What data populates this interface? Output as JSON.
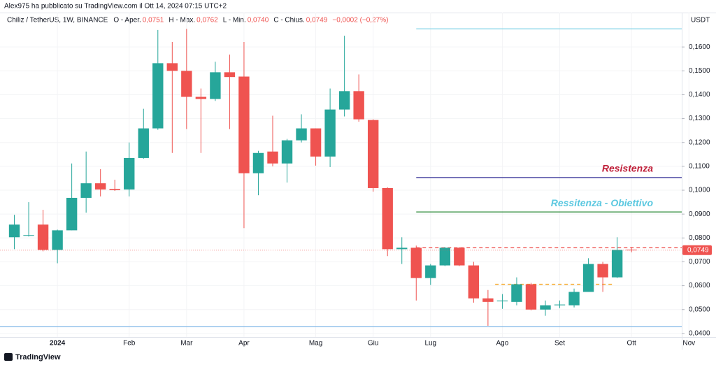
{
  "chart_data": {
    "type": "candlestick",
    "published": "Alex975 ha pubblicato su TradingView.com il Ott 14, 2024 07:15 UTC+2",
    "symbol": "Chiliz / TetherUS, 1W, BINANCE",
    "ohlc_legend": [
      {
        "label": "O - Aper.",
        "value": "0,0751"
      },
      {
        "label": "H - Max.",
        "value": "0,0762"
      },
      {
        "label": "L - Min.",
        "value": "0,0740"
      },
      {
        "label": "C - Chius.",
        "value": "0,0749"
      }
    ],
    "change": "−0,0002 (−0,27%)",
    "currency": "USDT",
    "brand": "TradingView",
    "up_color": "#26a69a",
    "down_color": "#ef5350",
    "open": [
      0.0803,
      0.081,
      0.0856,
      0.075,
      0.0832,
      0.0968,
      0.1029,
      0.1005,
      0.1003,
      0.1135,
      0.1259,
      0.1532,
      0.15,
      0.1391,
      0.1382,
      0.1494,
      0.1476,
      0.1071,
      0.1162,
      0.1112,
      0.1209,
      0.1259,
      0.1141,
      0.1338,
      0.1415,
      0.1294,
      0.1009,
      0.0753,
      0.0759,
      0.0632,
      0.0685,
      0.0759,
      0.0685,
      0.0547,
      0.0535,
      0.0532,
      0.0606,
      0.05,
      0.052,
      0.0518,
      0.0574,
      0.0691,
      0.0635,
      0.0751
    ],
    "high": [
      0.0897,
      0.095,
      0.0918,
      0.0835,
      0.1112,
      0.1162,
      0.1088,
      0.1044,
      0.12,
      0.1341,
      0.1671,
      0.1621,
      0.1676,
      0.1426,
      0.1538,
      0.1568,
      0.1621,
      0.1165,
      0.1312,
      0.1215,
      0.1318,
      0.1259,
      0.1426,
      0.1647,
      0.1485,
      0.1297,
      0.1012,
      0.0803,
      0.0768,
      0.0691,
      0.0762,
      0.0762,
      0.07,
      0.0582,
      0.0565,
      0.0635,
      0.0612,
      0.0538,
      0.0538,
      0.0588,
      0.0715,
      0.07,
      0.0803,
      0.0762
    ],
    "low": [
      0.0753,
      0.0806,
      0.0744,
      0.0694,
      0.0832,
      0.0906,
      0.0974,
      0.0997,
      0.0974,
      0.1132,
      0.1253,
      0.1156,
      0.1256,
      0.1156,
      0.1374,
      0.1256,
      0.0841,
      0.0979,
      0.11,
      0.1032,
      0.12,
      0.1103,
      0.1097,
      0.1309,
      0.1287,
      0.0994,
      0.0724,
      0.0691,
      0.0538,
      0.0603,
      0.0682,
      0.0682,
      0.0529,
      0.0432,
      0.0503,
      0.0518,
      0.0497,
      0.0474,
      0.0506,
      0.0509,
      0.0574,
      0.0574,
      0.0632,
      0.074
    ],
    "close": [
      0.0856,
      0.0812,
      0.075,
      0.0832,
      0.0968,
      0.1029,
      0.1003,
      0.1,
      0.1135,
      0.1259,
      0.1532,
      0.15,
      0.1391,
      0.1382,
      0.1494,
      0.1474,
      0.1071,
      0.1156,
      0.1112,
      0.1209,
      0.1259,
      0.1141,
      0.1338,
      0.1415,
      0.1297,
      0.1009,
      0.0753,
      0.0759,
      0.0632,
      0.0685,
      0.0759,
      0.0685,
      0.0547,
      0.0532,
      0.0538,
      0.0606,
      0.05,
      0.0518,
      0.0521,
      0.0574,
      0.0691,
      0.0635,
      0.075,
      0.0749
    ],
    "xlim": [
      -1,
      46.5
    ],
    "xticks": [
      {
        "value": 3,
        "label": "2024"
      },
      {
        "value": 8,
        "label": "Feb"
      },
      {
        "value": 12,
        "label": "Mar"
      },
      {
        "value": 16,
        "label": "Apr"
      },
      {
        "value": 21,
        "label": "Mag"
      },
      {
        "value": 25,
        "label": "Giu"
      },
      {
        "value": 29,
        "label": "Lug"
      },
      {
        "value": 34,
        "label": "Ago"
      },
      {
        "value": 38,
        "label": "Set"
      },
      {
        "value": 43,
        "label": "Ott"
      },
      {
        "value": 47,
        "label": "Nov"
      }
    ],
    "ylim": [
      0.0385,
      0.1744
    ],
    "yticks": [
      {
        "value": 0.04,
        "label": "0,0400"
      },
      {
        "value": 0.05,
        "label": "0,0500"
      },
      {
        "value": 0.06,
        "label": "0,0600"
      },
      {
        "value": 0.07,
        "label": "0,0700"
      },
      {
        "value": 0.08,
        "label": "0,0800"
      },
      {
        "value": 0.09,
        "label": "0,0900"
      },
      {
        "value": 0.1,
        "label": "0,1000"
      },
      {
        "value": 0.11,
        "label": "0,1100"
      },
      {
        "value": 0.12,
        "label": "0,1200"
      },
      {
        "value": 0.13,
        "label": "0,1300"
      },
      {
        "value": 0.14,
        "label": "0,1400"
      },
      {
        "value": 0.15,
        "label": "0,1500"
      },
      {
        "value": 0.16,
        "label": "0,1600"
      }
    ],
    "levels": [
      {
        "value": 0.1676,
        "color": "#7fd3e6",
        "from": 28,
        "to": 46.5,
        "dashed": false
      },
      {
        "value": 0.1053,
        "color": "#3f3a9c",
        "from": 28,
        "to": 46.5,
        "dashed": false
      },
      {
        "value": 0.0909,
        "color": "#2e8b3a",
        "from": 28,
        "to": 46.5,
        "dashed": false
      },
      {
        "value": 0.0759,
        "color": "#ef5350",
        "from": 28,
        "to": 46.5,
        "dashed": true
      },
      {
        "value": 0.0606,
        "color": "#f5a623",
        "from": 33.5,
        "to": 41.7,
        "dashed": true
      },
      {
        "value": 0.0429,
        "color": "#7fb8e6",
        "from": -1,
        "to": 46.5,
        "dashed": false
      }
    ],
    "labels": [
      {
        "text": "Resistenza",
        "value": 0.1088,
        "color": "#c0203a"
      },
      {
        "text": "Ressitenza - Obiettivo",
        "value": 0.0944,
        "color": "#5bc8e0"
      }
    ],
    "last_price": {
      "value": 0.0749,
      "label": "0,0749"
    }
  }
}
